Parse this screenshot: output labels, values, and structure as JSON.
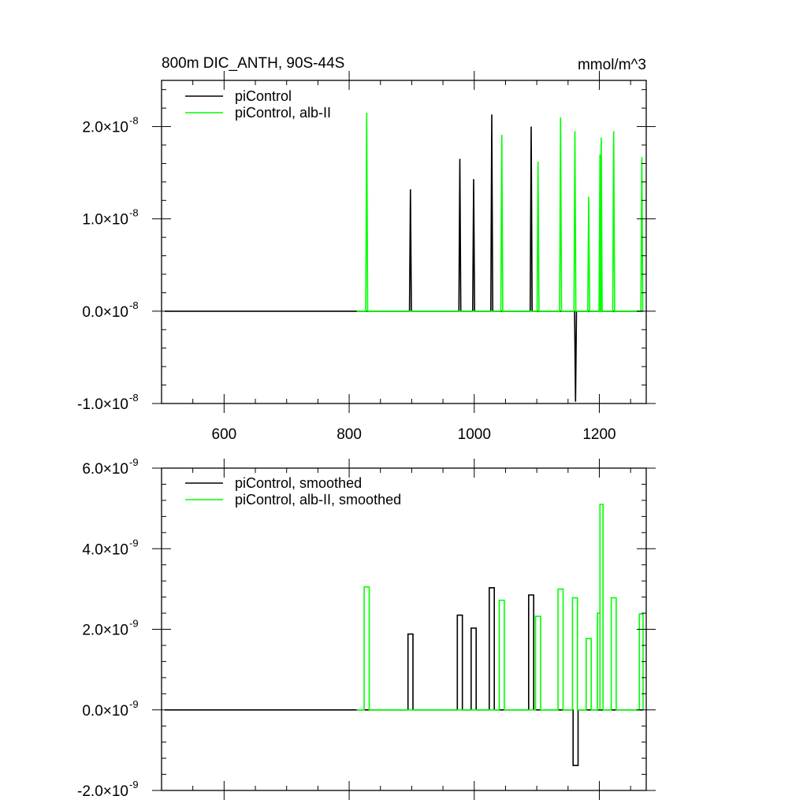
{
  "chart_data": [
    {
      "type": "line",
      "title": "800m DIC_ANTH, 90S-44S",
      "units": "mmol/m^3",
      "xlim": [
        500,
        1275
      ],
      "ylim": [
        -1e-08,
        2.5e-08
      ],
      "y_exponent": "-8",
      "x_ticks": [
        600,
        800,
        1000,
        1200
      ],
      "x_tick_labels": [
        "600",
        "800",
        "1000",
        "1200"
      ],
      "y_ticks": [
        -1e-08,
        0,
        1e-08,
        2e-08
      ],
      "y_tick_labels": [
        "-1.0×10",
        "0.0×10",
        "1.0×10",
        "2.0×10"
      ],
      "legend": "top-left",
      "grid": false,
      "series": [
        {
          "name": "piControl",
          "color": "#000000",
          "x_start": 505,
          "x_end": 1270,
          "spikes": [
            {
              "x": 898,
              "y": 1.32e-08
            },
            {
              "x": 977,
              "y": 1.65e-08
            },
            {
              "x": 999,
              "y": 1.43e-08
            },
            {
              "x": 1028,
              "y": 2.13e-08
            },
            {
              "x": 1091,
              "y": 2e-08
            },
            {
              "x": 1162,
              "y": -9.8e-09
            }
          ]
        },
        {
          "name": "piControl, alb-II",
          "color": "#00ff00",
          "x_start": 812,
          "x_end": 1270,
          "spikes": [
            {
              "x": 828,
              "y": 2.15e-08
            },
            {
              "x": 1044,
              "y": 1.91e-08
            },
            {
              "x": 1102,
              "y": 1.62e-08
            },
            {
              "x": 1138,
              "y": 2.1e-08
            },
            {
              "x": 1161,
              "y": 1.95e-08
            },
            {
              "x": 1183,
              "y": 1.24e-08
            },
            {
              "x": 1201,
              "y": 1.7e-08
            },
            {
              "x": 1203,
              "y": 1.88e-08
            },
            {
              "x": 1223,
              "y": 1.95e-08
            },
            {
              "x": 1268,
              "y": 1.67e-08
            }
          ]
        }
      ]
    },
    {
      "type": "line",
      "xlim": [
        500,
        1275
      ],
      "ylim": [
        -2e-09,
        6e-09
      ],
      "y_exponent": "-9",
      "x_ticks": [
        600,
        800,
        1000,
        1200
      ],
      "y_ticks": [
        -2e-09,
        0,
        2e-09,
        4e-09,
        6e-09
      ],
      "y_tick_labels": [
        "-2.0×10",
        "0.0×10",
        "2.0×10",
        "4.0×10",
        "6.0×10"
      ],
      "legend": "top-left",
      "grid": false,
      "series": [
        {
          "name": "piControl, smoothed",
          "color": "#000000",
          "x_start": 505,
          "x_end": 1270,
          "pulses": [
            {
              "x0": 894,
              "x1": 902,
              "y": 1.88e-09
            },
            {
              "x0": 973,
              "x1": 981,
              "y": 2.35e-09
            },
            {
              "x0": 995,
              "x1": 1003,
              "y": 2.03e-09
            },
            {
              "x0": 1024,
              "x1": 1032,
              "y": 3.03e-09
            },
            {
              "x0": 1087,
              "x1": 1095,
              "y": 2.85e-09
            },
            {
              "x0": 1158,
              "x1": 1166,
              "y": -1.38e-09
            }
          ]
        },
        {
          "name": "piControl, alb-II, smoothed",
          "color": "#00ff00",
          "x_start": 812,
          "x_end": 1270,
          "pulses": [
            {
              "x0": 824,
              "x1": 832,
              "y": 3.05e-09
            },
            {
              "x0": 1040,
              "x1": 1048,
              "y": 2.72e-09
            },
            {
              "x0": 1098,
              "x1": 1106,
              "y": 2.32e-09
            },
            {
              "x0": 1134,
              "x1": 1142,
              "y": 3e-09
            },
            {
              "x0": 1157,
              "x1": 1165,
              "y": 2.78e-09
            },
            {
              "x0": 1179,
              "x1": 1187,
              "y": 1.77e-09
            },
            {
              "x0": 1197,
              "x1": 1201,
              "y": 2.4e-09
            },
            {
              "x0": 1201,
              "x1": 1206,
              "y": 5.1e-09
            },
            {
              "x0": 1219,
              "x1": 1227,
              "y": 2.78e-09
            },
            {
              "x0": 1264,
              "x1": 1270,
              "y": 2.38e-09
            }
          ]
        }
      ]
    }
  ]
}
